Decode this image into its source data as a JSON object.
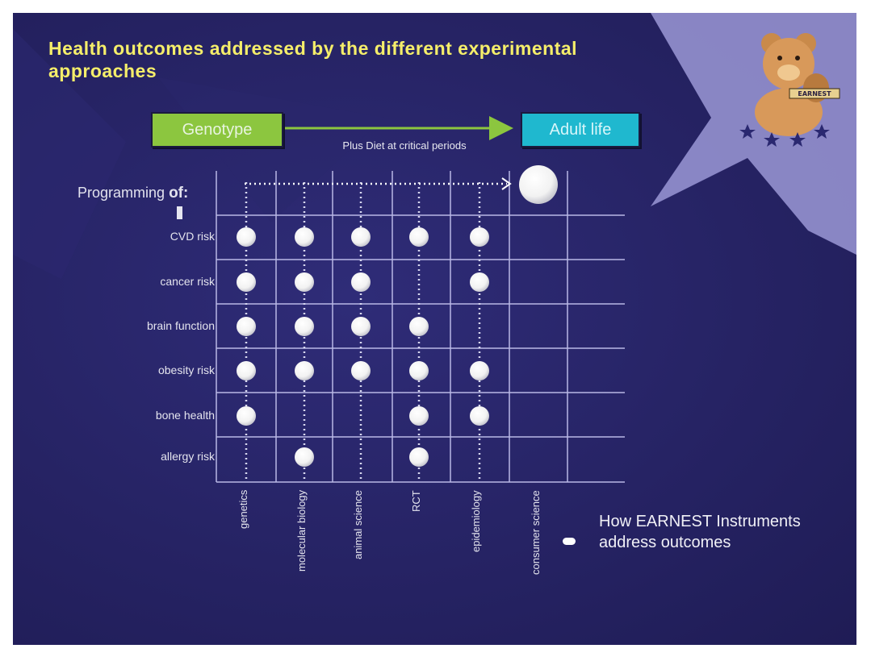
{
  "title": "Health outcomes addressed by the different experimental approaches",
  "flow": {
    "start": "Genotype",
    "end": "Adult life",
    "caption": "Plus Diet at critical periods"
  },
  "programming_label": "Programming",
  "programming_of": "of:",
  "rows": [
    "CVD risk",
    "cancer risk",
    "brain function",
    "obesity risk",
    "bone health",
    "allergy risk"
  ],
  "columns": [
    "genetics",
    "molecular biology",
    "animal science",
    "RCT",
    "epidemiology",
    "consumer science"
  ],
  "matrix": [
    [
      1,
      1,
      1,
      1,
      1,
      0
    ],
    [
      1,
      1,
      1,
      0,
      1,
      0
    ],
    [
      1,
      1,
      1,
      1,
      0,
      0
    ],
    [
      1,
      1,
      1,
      1,
      1,
      0
    ],
    [
      1,
      0,
      0,
      1,
      1,
      0
    ],
    [
      0,
      1,
      0,
      1,
      0,
      0
    ]
  ],
  "legend": "How EARNEST Instruments address outcomes",
  "logo_text": "EARNEST",
  "colors": {
    "background": "#262364",
    "title": "#f5ee6a",
    "genotype_box": "#8cc63f",
    "adult_box": "#1fb8cf",
    "arrow": "#8cc63f"
  }
}
